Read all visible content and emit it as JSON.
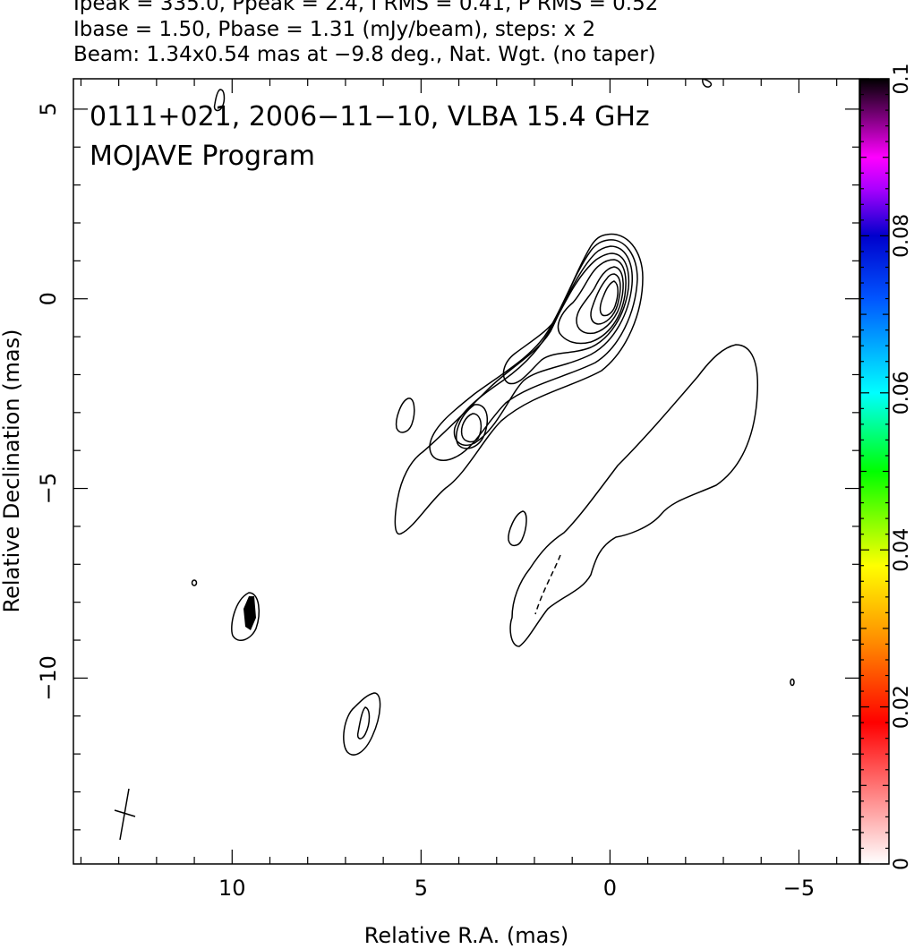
{
  "header": {
    "line1": "Ipeak = 335.0, Ppeak = 2.4, I RMS = 0.41, P RMS = 0.52",
    "line2": "Ibase = 1.50, Pbase = 1.31 (mJy/beam), steps: x 2",
    "line3": "Beam: 1.34x0.54 mas at −9.8 deg., Nat. Wgt. (no taper)"
  },
  "chart_data": {
    "type": "contour",
    "title": "0111+021, 2006−11−10, VLBA 15.4 GHz",
    "subtitle": "MOJAVE Program",
    "xlabel": "Relative R.A. (mas)",
    "ylabel": "Relative Declination (mas)",
    "xlim": [
      14.2,
      -6.6
    ],
    "ylim": [
      -14.9,
      5.8
    ],
    "x_ticks": [
      {
        "value": 10,
        "label": "10"
      },
      {
        "value": 5,
        "label": "5"
      },
      {
        "value": 0,
        "label": "0"
      },
      {
        "value": -5,
        "label": "−5"
      }
    ],
    "y_ticks": [
      {
        "value": 5,
        "label": "5"
      },
      {
        "value": 0,
        "label": "0"
      },
      {
        "value": -5,
        "label": "−5"
      },
      {
        "value": -10,
        "label": "−10"
      }
    ],
    "colorbar": {
      "range": [
        0,
        0.1
      ],
      "tick_labels": [
        {
          "value": 0,
          "label": "0"
        },
        {
          "value": 0.02,
          "label": "0.02"
        },
        {
          "value": 0.04,
          "label": "0.04"
        },
        {
          "value": 0.06,
          "label": "0.06"
        },
        {
          "value": 0.08,
          "label": "0.08"
        },
        {
          "value": 0.1,
          "label": "0.1"
        }
      ],
      "colors": [
        "#ffffff",
        "#ff0000",
        "#ff9900",
        "#ffff00",
        "#00ff00",
        "#00ffff",
        "#0000ff",
        "#ff00ff",
        "#000000"
      ]
    },
    "core": {
      "x": 0.0,
      "y": 0.0
    },
    "beam": {
      "major": 1.34,
      "minor": 0.54,
      "pa_deg": -9.8,
      "center": [
        12.9,
        -13.3
      ]
    },
    "contour_base_mJy": 1.5,
    "contour_step": 2
  }
}
